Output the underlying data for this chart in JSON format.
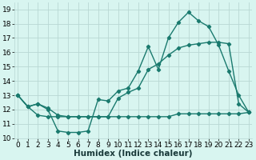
{
  "line1_x": [
    0,
    1,
    2,
    3,
    4,
    5,
    6,
    7,
    8,
    9,
    10,
    11,
    12,
    13,
    14,
    15,
    16,
    17,
    18,
    19,
    20,
    21,
    22,
    23
  ],
  "line1_y": [
    13.0,
    12.2,
    12.4,
    12.0,
    10.5,
    10.4,
    10.4,
    10.5,
    12.7,
    12.6,
    13.3,
    13.5,
    14.7,
    16.4,
    14.8,
    17.0,
    18.1,
    18.8,
    18.2,
    17.8,
    16.5,
    14.7,
    13.0,
    11.8
  ],
  "line2_x": [
    0,
    1,
    2,
    3,
    4,
    5,
    6,
    7,
    8,
    9,
    10,
    11,
    12,
    13,
    14,
    15,
    16,
    17,
    18,
    19,
    20,
    21,
    22,
    23
  ],
  "line2_y": [
    13.0,
    12.2,
    12.4,
    12.1,
    11.6,
    11.5,
    11.5,
    11.5,
    11.5,
    11.5,
    12.8,
    13.2,
    13.5,
    14.8,
    15.2,
    15.8,
    16.3,
    16.5,
    16.6,
    16.7,
    16.7,
    16.6,
    12.4,
    11.8
  ],
  "line3_x": [
    0,
    1,
    2,
    3,
    4,
    5,
    6,
    7,
    8,
    9,
    10,
    11,
    12,
    13,
    14,
    15,
    16,
    17,
    18,
    19,
    20,
    21,
    22,
    23
  ],
  "line3_y": [
    13.0,
    12.2,
    11.6,
    11.5,
    11.5,
    11.5,
    11.5,
    11.5,
    11.5,
    11.5,
    11.5,
    11.5,
    11.5,
    11.5,
    11.5,
    11.5,
    11.7,
    11.7,
    11.7,
    11.7,
    11.7,
    11.7,
    11.7,
    11.8
  ],
  "line_color": "#1a7a6e",
  "bg_color": "#d8f5f0",
  "grid_color": "#b8d8d4",
  "xlabel": "Humidex (Indice chaleur)",
  "ylim": [
    10,
    19.5
  ],
  "xlim": [
    -0.3,
    23.3
  ],
  "yticks": [
    10,
    11,
    12,
    13,
    14,
    15,
    16,
    17,
    18,
    19
  ],
  "xticks": [
    0,
    1,
    2,
    3,
    4,
    5,
    6,
    7,
    8,
    9,
    10,
    11,
    12,
    13,
    14,
    15,
    16,
    17,
    18,
    19,
    20,
    21,
    22,
    23
  ],
  "xlabel_fontsize": 7.5,
  "tick_fontsize": 6.5,
  "marker": "D",
  "marker_size": 2.2,
  "line_width": 1.0
}
